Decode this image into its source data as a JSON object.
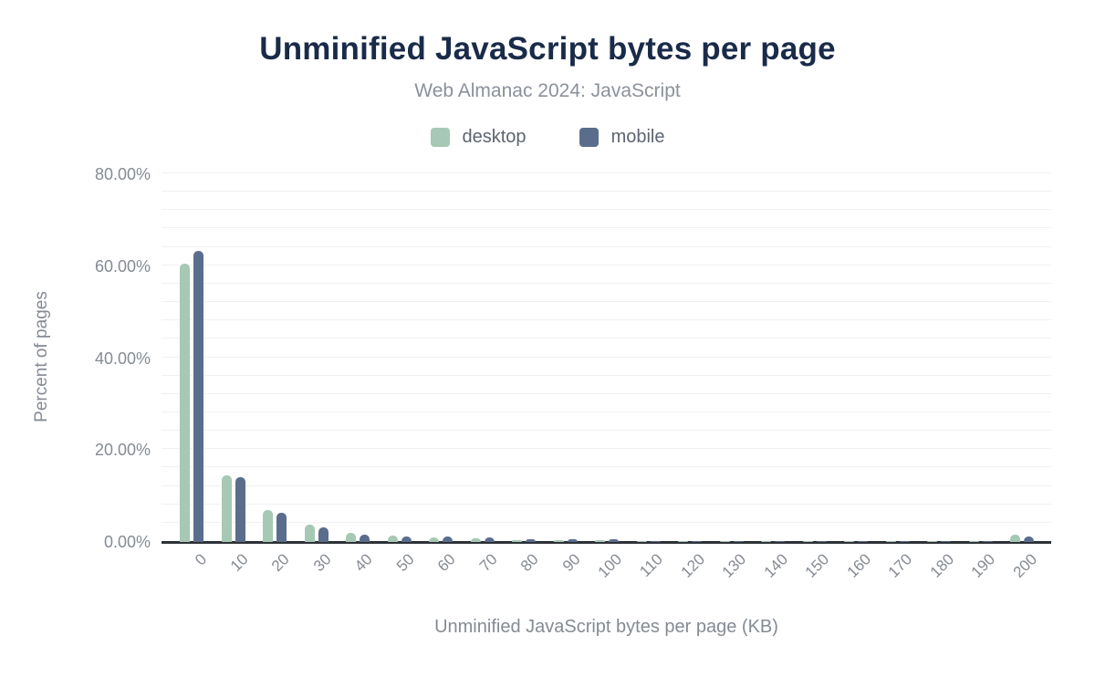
{
  "chart_data": {
    "type": "bar",
    "title": "Unminified JavaScript bytes per page",
    "subtitle": "Web Almanac 2024: JavaScript",
    "xlabel": "Unminified JavaScript bytes per page (KB)",
    "ylabel": "Percent of pages",
    "categories": [
      "0",
      "10",
      "20",
      "30",
      "40",
      "50",
      "60",
      "70",
      "80",
      "90",
      "100",
      "110",
      "120",
      "130",
      "140",
      "150",
      "160",
      "170",
      "180",
      "190",
      "200"
    ],
    "series": [
      {
        "name": "desktop",
        "color": "#a6c8b4",
        "values": [
          60.6,
          14.4,
          6.9,
          3.8,
          2.0,
          1.4,
          1.0,
          0.7,
          0.45,
          0.4,
          0.45,
          0.2,
          0.2,
          0.15,
          0.15,
          0.15,
          0.2,
          0.15,
          0.1,
          0.15,
          1.6
        ]
      },
      {
        "name": "mobile",
        "color": "#5b6d8c",
        "values": [
          63.4,
          14.0,
          6.4,
          3.2,
          1.6,
          1.2,
          1.2,
          0.9,
          0.6,
          0.5,
          0.55,
          0.25,
          0.25,
          0.2,
          0.2,
          0.15,
          0.25,
          0.2,
          0.15,
          0.2,
          1.2
        ]
      }
    ],
    "y_ticks": [
      {
        "v": 0,
        "label": "0.00%"
      },
      {
        "v": 20,
        "label": "20.00%"
      },
      {
        "v": 40,
        "label": "40.00%"
      },
      {
        "v": 60,
        "label": "60.00%"
      },
      {
        "v": 80,
        "label": "80.00%"
      }
    ],
    "ylim": [
      0,
      80
    ],
    "grid_step_pct": 4,
    "legend_position": "top",
    "colors": {
      "title": "#1a2b49",
      "subtitle": "#8b919a",
      "axis_text": "#858b93",
      "gridline": "#f1f1f4",
      "baseline": "#2d3238"
    }
  }
}
